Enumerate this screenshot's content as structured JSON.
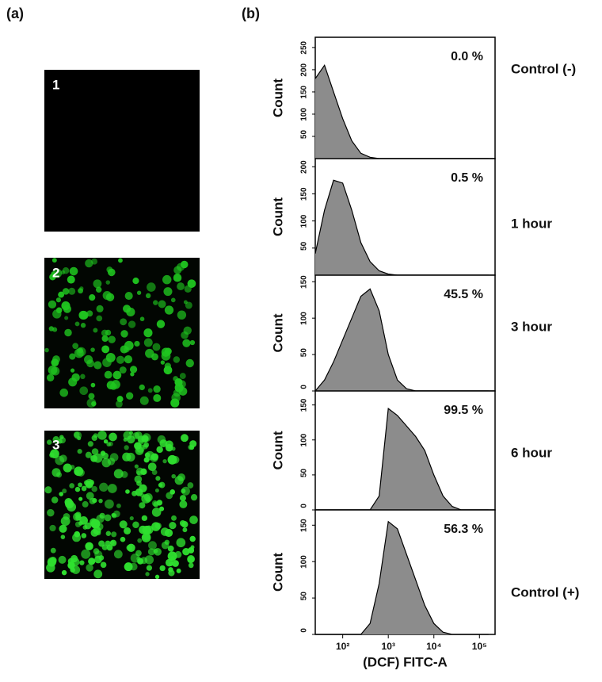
{
  "panels": {
    "a": "(a)",
    "b": "(b)"
  },
  "images": [
    "1",
    "2",
    "3"
  ],
  "chart_data": [
    {
      "type": "area",
      "ylabel": "Count",
      "annotation": "0.0 %",
      "label": "Control (-)",
      "color": "#8c8c8c",
      "log_x": true,
      "xlim": [
        25,
        220000
      ],
      "ylim": [
        0,
        273
      ],
      "yticks": [
        50,
        100,
        150,
        200,
        250
      ],
      "x": [
        25,
        40,
        63,
        100,
        158,
        251,
        398,
        631,
        1000,
        1585,
        2512,
        3981,
        6310,
        10000,
        15849,
        25119,
        39811,
        63096,
        100000,
        158489
      ],
      "values": [
        180,
        210,
        150,
        90,
        40,
        12,
        3,
        0,
        0,
        0,
        0,
        0,
        0,
        0,
        0,
        0,
        0,
        0,
        0,
        0
      ]
    },
    {
      "type": "area",
      "ylabel": "Count",
      "annotation": "0.5 %",
      "label": "1 hour",
      "color": "#8c8c8c",
      "log_x": true,
      "xlim": [
        25,
        220000
      ],
      "ylim": [
        0,
        215
      ],
      "yticks": [
        50,
        100,
        150,
        200
      ],
      "x": [
        25,
        40,
        63,
        100,
        158,
        251,
        398,
        631,
        1000,
        1585,
        2512,
        3981,
        6310,
        10000,
        15849,
        25119,
        39811,
        63096,
        100000,
        158489
      ],
      "values": [
        40,
        120,
        175,
        170,
        120,
        60,
        25,
        8,
        2,
        0,
        0,
        0,
        0,
        0,
        0,
        0,
        0,
        0,
        0,
        0
      ]
    },
    {
      "type": "area",
      "ylabel": "Count",
      "annotation": "45.5 %",
      "label": "3 hour",
      "color": "#8c8c8c",
      "log_x": true,
      "xlim": [
        25,
        220000
      ],
      "ylim": [
        0,
        159
      ],
      "yticks": [
        0,
        50,
        100,
        150
      ],
      "x": [
        25,
        40,
        63,
        100,
        158,
        251,
        398,
        631,
        1000,
        1585,
        2512,
        3981,
        6310,
        10000,
        15849,
        25119,
        39811,
        63096,
        100000,
        158489
      ],
      "values": [
        0,
        15,
        40,
        70,
        100,
        130,
        140,
        110,
        50,
        15,
        3,
        0,
        0,
        0,
        0,
        0,
        0,
        0,
        0,
        0
      ]
    },
    {
      "type": "area",
      "ylabel": "Count",
      "annotation": "99.5 %",
      "label": "6 hour",
      "color": "#8c8c8c",
      "log_x": true,
      "xlim": [
        25,
        220000
      ],
      "ylim": [
        0,
        170
      ],
      "yticks": [
        0,
        50,
        100,
        150
      ],
      "x": [
        25,
        40,
        63,
        100,
        158,
        251,
        398,
        631,
        1000,
        1585,
        2512,
        3981,
        6310,
        10000,
        15849,
        25119,
        39811,
        63096,
        100000,
        158489
      ],
      "values": [
        0,
        0,
        0,
        0,
        0,
        0,
        0,
        20,
        145,
        135,
        120,
        105,
        85,
        50,
        20,
        5,
        0,
        0,
        0,
        0
      ]
    },
    {
      "type": "area",
      "ylabel": "Count",
      "annotation": "56.3 %",
      "label": "Control (+)",
      "color": "#8c8c8c",
      "log_x": true,
      "xlim": [
        25,
        220000
      ],
      "ylim": [
        0,
        171
      ],
      "yticks": [
        0,
        50,
        100,
        150
      ],
      "xlabel": "(DCF) FITC-A",
      "xticks": [
        {
          "value": 100,
          "label": "10²"
        },
        {
          "value": 1000,
          "label": "10³"
        },
        {
          "value": 10000,
          "label": "10⁴"
        },
        {
          "value": 100000,
          "label": "10⁵"
        }
      ],
      "x": [
        25,
        40,
        63,
        100,
        158,
        251,
        398,
        631,
        1000,
        1585,
        2512,
        3981,
        6310,
        10000,
        15849,
        25119,
        39811,
        63096,
        100000,
        158489
      ],
      "values": [
        0,
        0,
        0,
        0,
        0,
        0,
        15,
        70,
        155,
        145,
        110,
        75,
        40,
        15,
        3,
        0,
        0,
        0,
        0,
        0
      ]
    }
  ]
}
